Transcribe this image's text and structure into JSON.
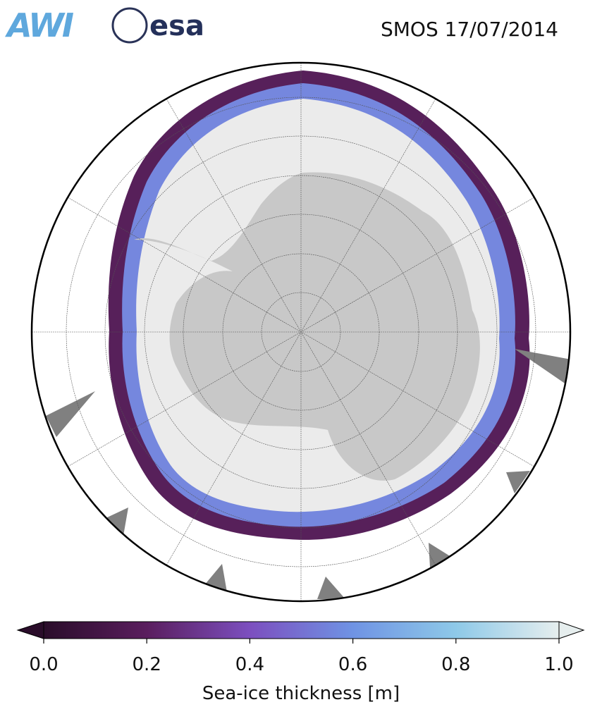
{
  "header": {
    "logos": [
      "AWI",
      "esa"
    ],
    "title": "SMOS 17/07/2014"
  },
  "colorbar": {
    "label": "Sea-ice thickness [m]",
    "lim": [
      0,
      1
    ],
    "ticks": [
      {
        "value": 0,
        "label": "0.0"
      },
      {
        "value": 0.2,
        "label": "0.2"
      },
      {
        "value": 0.4,
        "label": "0.4"
      },
      {
        "value": 0.6,
        "label": "0.6"
      },
      {
        "value": 0.8,
        "label": "0.8"
      },
      {
        "value": 1,
        "label": "1.0"
      }
    ],
    "colors": [
      "#2a0d2a",
      "#5a1e5e",
      "#7c4fbf",
      "#6f93e4",
      "#8ec9e8",
      "#e6eeee"
    ]
  }
}
